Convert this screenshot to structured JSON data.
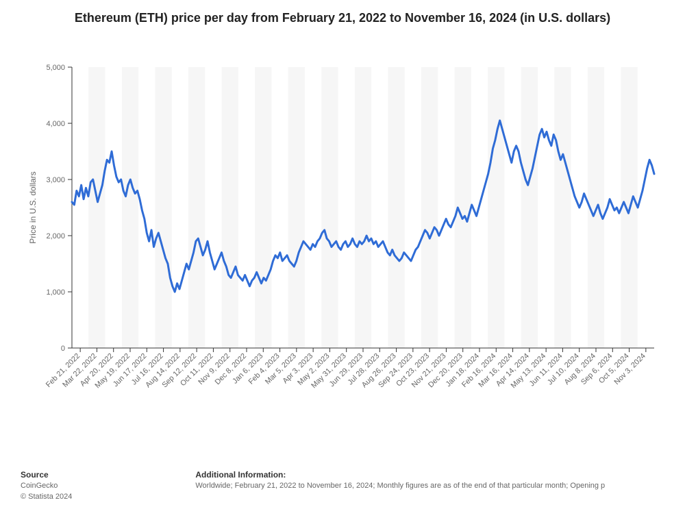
{
  "title": "Ethereum (ETH) price per day from February 21, 2022 to November 16, 2024 (in U.S. dollars)",
  "chart": {
    "type": "line",
    "line_color": "#2f6cd6",
    "line_width": 3,
    "background_color": "#ffffff",
    "plot_band_color": "#f6f6f6",
    "axis_color": "#333333",
    "tick_label_color": "#666666",
    "axis_label_color": "#666666",
    "ylabel": "Price in U.S. dollars",
    "ylabel_fontsize": 12,
    "ylim": [
      0,
      5000
    ],
    "ytick_step": 1000,
    "yticks": [
      0,
      1000,
      2000,
      3000,
      4000,
      5000
    ],
    "ytick_labels": [
      "0",
      "1,000",
      "2,000",
      "3,000",
      "4,000",
      "5,000"
    ],
    "x_labels": [
      "Feb 21, 2022",
      "Mar 22, 2022",
      "Apr 20, 2022",
      "May 19, 2022",
      "Jun 17, 2022",
      "Jul 16, 2022",
      "Aug 14, 2022",
      "Sep 12, 2022",
      "Oct 11, 2022",
      "Nov 9, 2022",
      "Dec 8, 2022",
      "Jan 6, 2023",
      "Feb 4, 2023",
      "Mar 5, 2023",
      "Apr 3, 2023",
      "May 2, 2023",
      "May 31, 2023",
      "Jun 29, 2023",
      "Jul 28, 2023",
      "Aug 26, 2023",
      "Sep 24, 2023",
      "Oct 23, 2023",
      "Nov 21, 2023",
      "Dec 20, 2023",
      "Jan 18, 2024",
      "Feb 16, 2024",
      "Mar 16, 2024",
      "Apr 14, 2024",
      "May 13, 2024",
      "Jun 11, 2024",
      "Jul 10, 2024",
      "Aug 8, 2024",
      "Sep 6, 2024",
      "Oct 5, 2024",
      "Nov 3, 2024"
    ],
    "n_bands": 35,
    "series": [
      2600,
      2550,
      2800,
      2700,
      2900,
      2650,
      2850,
      2700,
      2950,
      3000,
      2800,
      2600,
      2750,
      2900,
      3150,
      3350,
      3300,
      3500,
      3250,
      3050,
      2950,
      3000,
      2800,
      2700,
      2900,
      3000,
      2850,
      2750,
      2800,
      2650,
      2450,
      2300,
      2050,
      1900,
      2100,
      1800,
      1950,
      2050,
      1900,
      1750,
      1600,
      1500,
      1250,
      1100,
      1000,
      1150,
      1050,
      1200,
      1350,
      1500,
      1400,
      1550,
      1700,
      1900,
      1950,
      1800,
      1650,
      1750,
      1900,
      1700,
      1550,
      1400,
      1500,
      1600,
      1700,
      1550,
      1450,
      1300,
      1250,
      1350,
      1450,
      1300,
      1250,
      1200,
      1300,
      1200,
      1100,
      1200,
      1250,
      1350,
      1250,
      1150,
      1250,
      1200,
      1300,
      1400,
      1550,
      1650,
      1600,
      1700,
      1550,
      1600,
      1650,
      1550,
      1500,
      1450,
      1550,
      1700,
      1800,
      1900,
      1850,
      1800,
      1750,
      1850,
      1800,
      1900,
      1950,
      2050,
      2100,
      1950,
      1900,
      1800,
      1850,
      1900,
      1800,
      1750,
      1850,
      1900,
      1800,
      1850,
      1950,
      1850,
      1800,
      1900,
      1850,
      1900,
      2000,
      1900,
      1950,
      1850,
      1900,
      1800,
      1850,
      1900,
      1800,
      1700,
      1650,
      1750,
      1650,
      1600,
      1550,
      1600,
      1700,
      1650,
      1600,
      1550,
      1650,
      1750,
      1800,
      1900,
      2000,
      2100,
      2050,
      1950,
      2050,
      2150,
      2100,
      2000,
      2100,
      2200,
      2300,
      2200,
      2150,
      2250,
      2350,
      2500,
      2400,
      2300,
      2350,
      2250,
      2400,
      2550,
      2450,
      2350,
      2500,
      2650,
      2800,
      2950,
      3100,
      3300,
      3550,
      3700,
      3900,
      4050,
      3900,
      3750,
      3600,
      3450,
      3300,
      3500,
      3600,
      3500,
      3300,
      3150,
      3000,
      2900,
      3050,
      3200,
      3400,
      3600,
      3800,
      3900,
      3750,
      3850,
      3700,
      3600,
      3800,
      3700,
      3500,
      3350,
      3450,
      3300,
      3150,
      3000,
      2850,
      2700,
      2600,
      2500,
      2600,
      2750,
      2650,
      2550,
      2450,
      2350,
      2450,
      2550,
      2400,
      2300,
      2400,
      2500,
      2650,
      2550,
      2450,
      2500,
      2400,
      2500,
      2600,
      2500,
      2400,
      2550,
      2700,
      2600,
      2500,
      2650,
      2800,
      3000,
      3200,
      3350,
      3250,
      3100
    ]
  },
  "footer": {
    "source_heading": "Source",
    "source_name": "CoinGecko",
    "copyright": "© Statista 2024",
    "additional_heading": "Additional Information:",
    "additional_text": "Worldwide; February 21, 2022 to November 16, 2024; Monthly figures are as of the end of that particular month; Opening p"
  }
}
